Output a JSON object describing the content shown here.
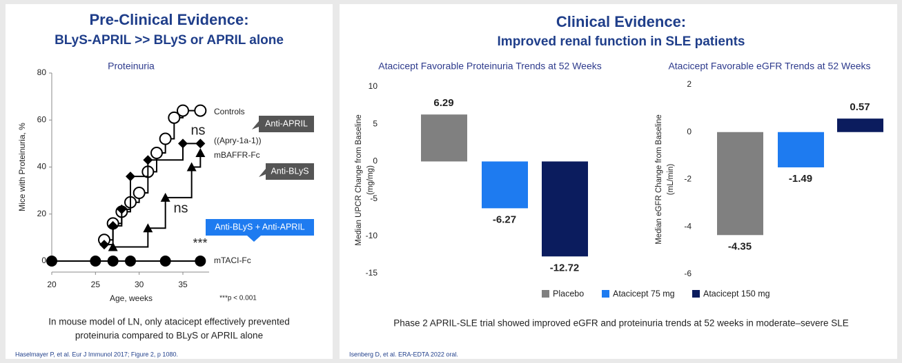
{
  "left": {
    "title": "Pre-Clinical Evidence:",
    "subtitle": "BLyS-APRIL >> BLyS or APRIL alone",
    "caption": [
      "In mouse model of LN, only atacicept effectively prevented",
      "proteinuria compared to BLyS or APRIL alone"
    ],
    "reference": "Haselmayer P, et al. Eur J Immunol 2017; Figure 2, p 1080."
  },
  "right": {
    "title": "Clinical Evidence:",
    "subtitle": "Improved renal function in SLE patients",
    "caption": "Phase 2 APRIL-SLE trial showed improved eGFR and proteinuria trends at 52 weeks in moderate–severe SLE",
    "reference": "Isenberg D, et al. ERA-EDTA 2022 oral.",
    "legend": {
      "labels": [
        "Placebo",
        "Atacicept 75 mg",
        "Atacicept 150 mg"
      ],
      "colors": [
        "#808080",
        "#1e7bf0",
        "#0b1c5e"
      ]
    }
  },
  "chart_data": [
    {
      "type": "line",
      "title": "Proteinuria",
      "xlabel": "Age, weeks",
      "ylabel": "Mice with Proteinuria, %",
      "xlim": [
        20,
        38
      ],
      "ylim": [
        0,
        80
      ],
      "xticks": [
        20,
        25,
        30,
        35
      ],
      "yticks": [
        0,
        20,
        40,
        60,
        80
      ],
      "series": [
        {
          "name": "Controls",
          "marker": "open-circle",
          "color": "#000000",
          "x": [
            26,
            27,
            28,
            29,
            30,
            31,
            32,
            33,
            34,
            35,
            37
          ],
          "values": [
            9,
            16,
            21,
            25,
            29,
            38,
            46,
            52,
            61,
            64,
            64
          ]
        },
        {
          "name": "((Apry-1a-1))",
          "marker": "diamond",
          "color": "#000000",
          "x": [
            26,
            27,
            28,
            29,
            31,
            35,
            37
          ],
          "values": [
            7,
            15,
            22,
            36,
            43,
            50,
            50
          ]
        },
        {
          "name": "mBAFFR-Fc",
          "marker": "triangle",
          "color": "#000000",
          "x": [
            27,
            31,
            33,
            36,
            37
          ],
          "values": [
            6,
            14,
            27,
            40,
            46
          ]
        },
        {
          "name": "mTACI-Fc",
          "marker": "circle",
          "color": "#000000",
          "x": [
            20,
            25,
            27,
            29,
            33,
            37
          ],
          "values": [
            0,
            0,
            0,
            0,
            0,
            0
          ]
        }
      ],
      "annotations": [
        "ns",
        "ns",
        "***",
        "***p < 0.001"
      ],
      "callouts": [
        {
          "text": "Anti-APRIL",
          "color": "#555555"
        },
        {
          "text": "Anti-BLyS",
          "color": "#555555"
        },
        {
          "text": "Anti-BLyS + Anti-APRIL",
          "color": "#1e7bf0"
        }
      ]
    },
    {
      "type": "bar",
      "title": "Atacicept Favorable Proteinuria Trends at 52 Weeks",
      "ylabel": [
        "Median UPCR Change from Baseline",
        "(mg/mg)"
      ],
      "ylim": [
        -15,
        10
      ],
      "yticks": [
        10,
        5,
        0,
        -5,
        -10,
        -15
      ],
      "values": [
        6.29,
        -6.27,
        -12.72
      ],
      "colors": [
        "#808080",
        "#1e7bf0",
        "#0b1c5e"
      ]
    },
    {
      "type": "bar",
      "title": "Atacicept Favorable eGFR Trends at 52 Weeks",
      "ylabel": [
        "Median eGFR Change from Baseline",
        "(mL/min)"
      ],
      "ylim": [
        -6,
        2
      ],
      "yticks": [
        2,
        0,
        -2,
        -4,
        -6
      ],
      "values": [
        -4.35,
        -1.49,
        0.57
      ],
      "colors": [
        "#808080",
        "#1e7bf0",
        "#0b1c5e"
      ]
    }
  ]
}
